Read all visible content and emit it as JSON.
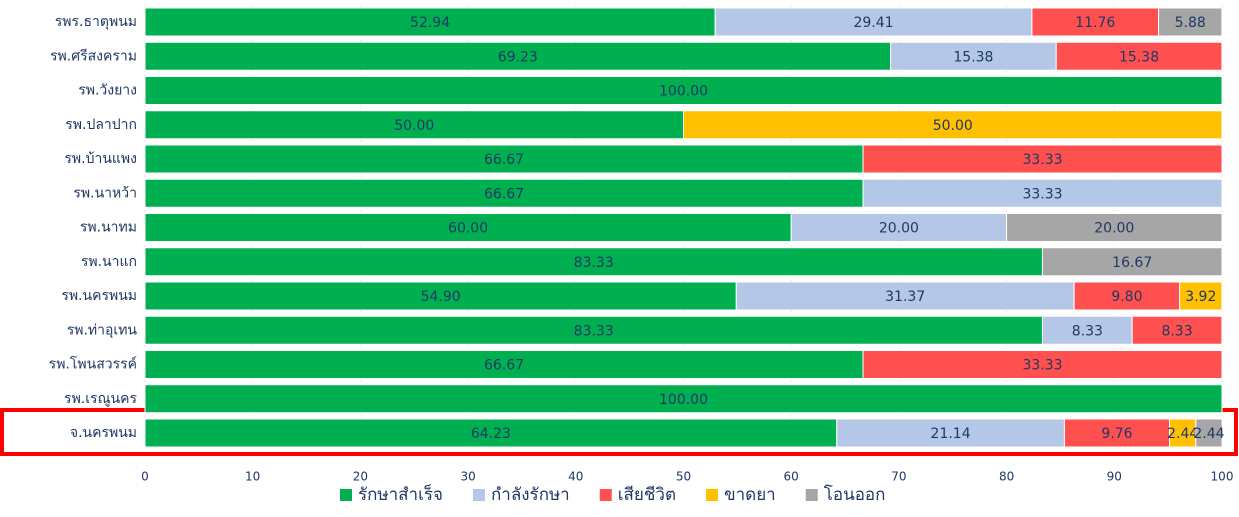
{
  "chart_data": {
    "type": "stacked-bar-horizontal",
    "categories": [
      "รพร.ธาตุพนม",
      "รพ.ศรีสงคราม",
      "รพ.วังยาง",
      "รพ.ปลาปาก",
      "รพ.บ้านแพง",
      "รพ.นาหว้า",
      "รพ.นาทม",
      "รพ.นาแก",
      "รพ.นครพนม",
      "รพ.ท่าอุเทน",
      "รพ.โพนสวรรค์",
      "รพ.เรณูนคร",
      "จ.นครพนม"
    ],
    "series": [
      {
        "name": "รักษาสำเร็จ",
        "color": "#00b050",
        "values": [
          52.94,
          69.23,
          100,
          50,
          66.67,
          66.67,
          60,
          83.33,
          54.9,
          83.33,
          66.67,
          100,
          64.23
        ],
        "value_labels": [
          "52.94",
          "69.23",
          "100.00",
          "50.00",
          "66.67",
          "66.67",
          "60.00",
          "83.33",
          "54.90",
          "83.33",
          "66.67",
          "100.00",
          "64.23"
        ]
      },
      {
        "name": "กำลังรักษา",
        "color": "#b4c7e7",
        "values": [
          29.41,
          15.38,
          null,
          null,
          null,
          33.33,
          20,
          null,
          31.37,
          8.33,
          null,
          null,
          21.14
        ],
        "value_labels": [
          "29.41",
          "15.38",
          null,
          null,
          null,
          "33.33",
          "20.00",
          null,
          "31.37",
          "8.33",
          null,
          null,
          "21.14"
        ]
      },
      {
        "name": "เสียชีวิต",
        "color": "#ff5050",
        "values": [
          11.76,
          15.38,
          null,
          null,
          33.33,
          null,
          null,
          null,
          9.8,
          8.33,
          33.33,
          null,
          9.76
        ],
        "value_labels": [
          "11.76",
          "15.38",
          null,
          null,
          "33.33",
          null,
          null,
          null,
          "9.80",
          "8.33",
          "33.33",
          null,
          "9.76"
        ]
      },
      {
        "name": "ขาดยา",
        "color": "#ffc000",
        "values": [
          null,
          null,
          null,
          50,
          null,
          null,
          null,
          null,
          3.92,
          null,
          null,
          null,
          2.44
        ],
        "value_labels": [
          null,
          null,
          null,
          "50.00",
          null,
          null,
          null,
          null,
          "3.92",
          null,
          null,
          null,
          "2.44"
        ]
      },
      {
        "name": "โอนออก",
        "color": "#a6a6a6",
        "values": [
          5.88,
          null,
          null,
          null,
          null,
          null,
          20,
          16.67,
          null,
          null,
          null,
          null,
          2.44
        ],
        "value_labels": [
          "5.88",
          null,
          null,
          null,
          null,
          null,
          "20.00",
          "16.67",
          null,
          null,
          null,
          null,
          "2.44"
        ]
      }
    ],
    "xlim": [
      0,
      100
    ],
    "xticks": [
      0,
      10,
      20,
      30,
      40,
      50,
      60,
      70,
      80,
      90,
      100
    ],
    "grid": true,
    "legend": "bottom"
  }
}
